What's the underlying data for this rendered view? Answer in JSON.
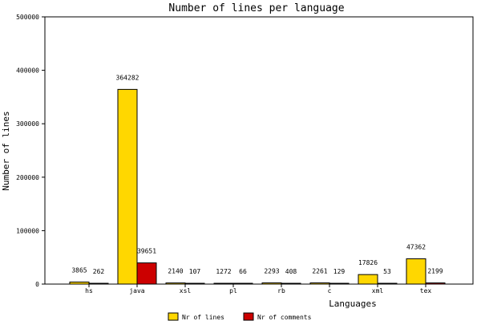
{
  "chart_data": {
    "type": "bar",
    "title": "Number of lines per language",
    "xlabel": "Languages",
    "ylabel": "Number of lines",
    "categories": [
      "hs",
      "java",
      "xsl",
      "pl",
      "rb",
      "c",
      "xml",
      "tex"
    ],
    "ylim": [
      0,
      500000
    ],
    "yticks": [
      "0",
      "100000",
      "200000",
      "300000",
      "400000",
      "500000"
    ],
    "grid": false,
    "legend_position": "bottom",
    "series": [
      {
        "name": "Nr of lines",
        "color": "#ffd700",
        "values": [
          3865,
          364282,
          2140,
          1272,
          2293,
          2261,
          17826,
          47362
        ]
      },
      {
        "name": "Nr of comments",
        "color": "#cc0000",
        "values": [
          262,
          39651,
          107,
          66,
          408,
          129,
          53,
          2199
        ]
      }
    ]
  }
}
